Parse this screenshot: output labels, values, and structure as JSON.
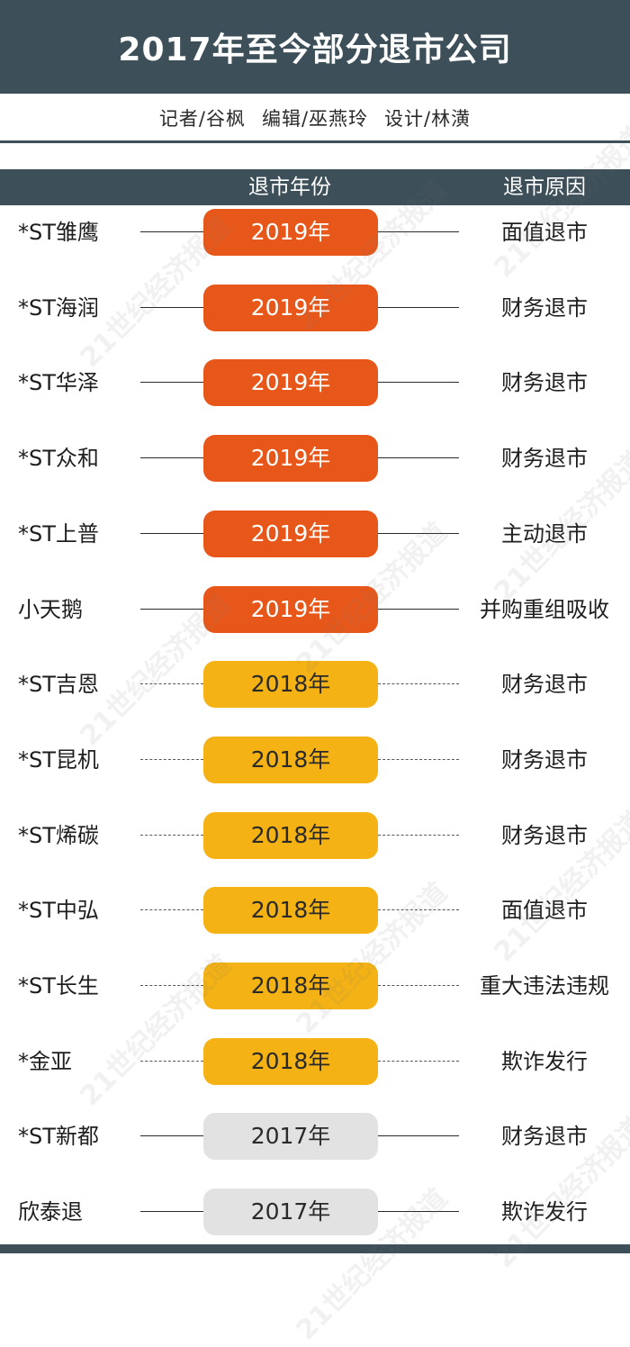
{
  "title": "2017年至今部分退市公司",
  "credits": {
    "reporter": "记者/谷枫",
    "editor": "编辑/巫燕玲",
    "designer": "设计/林潢"
  },
  "columns": {
    "year": "退市年份",
    "reason": "退市原因"
  },
  "watermark": "21世纪经济报道",
  "colors": {
    "header": "#3d4f59",
    "year_2019": "#e8571a",
    "year_2018": "#f4b215",
    "year_2017": "#e2e2e2"
  },
  "rows": [
    {
      "company": "*ST雏鹰",
      "year": "2019年",
      "reason": "面值退市"
    },
    {
      "company": "*ST海润",
      "year": "2019年",
      "reason": "财务退市"
    },
    {
      "company": "*ST华泽",
      "year": "2019年",
      "reason": "财务退市"
    },
    {
      "company": "*ST众和",
      "year": "2019年",
      "reason": "财务退市"
    },
    {
      "company": "*ST上普",
      "year": "2019年",
      "reason": "主动退市"
    },
    {
      "company": "小天鹅",
      "year": "2019年",
      "reason": "并购重组吸收"
    },
    {
      "company": "*ST吉恩",
      "year": "2018年",
      "reason": "财务退市"
    },
    {
      "company": "*ST昆机",
      "year": "2018年",
      "reason": "财务退市"
    },
    {
      "company": "*ST烯碳",
      "year": "2018年",
      "reason": "财务退市"
    },
    {
      "company": "*ST中弘",
      "year": "2018年",
      "reason": "面值退市"
    },
    {
      "company": "*ST长生",
      "year": "2018年",
      "reason": "重大违法违规"
    },
    {
      "company": "*金亚",
      "year": "2018年",
      "reason": "欺诈发行"
    },
    {
      "company": "*ST新都",
      "year": "2017年",
      "reason": "财务退市"
    },
    {
      "company": "欣泰退",
      "year": "2017年",
      "reason": "欺诈发行"
    }
  ]
}
